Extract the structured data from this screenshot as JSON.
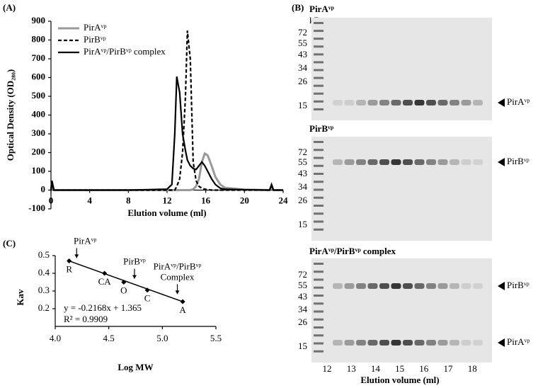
{
  "chart_data": [
    {
      "type": "line",
      "panel": "(A)",
      "x_label": "Elution volume (ml)",
      "y_label": "Optical Density (OD₂₈₀)",
      "x": [
        0,
        0.1,
        0.3,
        4,
        8,
        12,
        12.5,
        12.8,
        13,
        13.3,
        13.6,
        13.9,
        14.1,
        14.4,
        14.7,
        15,
        15.3,
        15.6,
        15.9,
        16.2,
        16.6,
        17,
        17.5,
        18,
        20,
        22.6,
        22.8,
        23,
        24
      ],
      "series": [
        {
          "name": "PirAᵛᵖ",
          "color": "#999999",
          "dash": false,
          "values": [
            0,
            40,
            0,
            0,
            0,
            0,
            0,
            0,
            0,
            0,
            0,
            0,
            0,
            0,
            5,
            20,
            60,
            150,
            195,
            185,
            130,
            70,
            30,
            12,
            3,
            0,
            25,
            0,
            0
          ]
        },
        {
          "name": "PirBᵛᵖ",
          "color": "#000000",
          "dash": true,
          "values": [
            0,
            40,
            0,
            0,
            0,
            0,
            0,
            0,
            20,
            60,
            200,
            500,
            850,
            700,
            150,
            50,
            20,
            10,
            5,
            3,
            0,
            0,
            0,
            0,
            0,
            0,
            25,
            0,
            0
          ]
        },
        {
          "name": "PirAᵛᵖ/PirBᵛᵖ complex",
          "color": "#000000",
          "dash": false,
          "values": [
            0,
            50,
            0,
            0,
            0,
            5,
            30,
            300,
            605,
            520,
            300,
            210,
            160,
            130,
            115,
            110,
            130,
            150,
            130,
            100,
            60,
            30,
            10,
            5,
            2,
            0,
            30,
            0,
            0
          ]
        }
      ],
      "xlim": [
        0,
        24
      ],
      "xticks": [
        0,
        4,
        8,
        12,
        16,
        20,
        24
      ],
      "ylim": [
        -100,
        900
      ],
      "yticks": [
        -100,
        0,
        100,
        200,
        300,
        400,
        500,
        600,
        700,
        800,
        900
      ],
      "legend": "top-left"
    },
    {
      "type": "scatter",
      "panel": "(C)",
      "x_label": "Log MW",
      "y_label": "Kav",
      "x": [
        4.13,
        4.46,
        4.64,
        4.86,
        5.19
      ],
      "values": [
        0.47,
        0.4,
        0.35,
        0.305,
        0.24
      ],
      "point_labels": [
        "R",
        "CA",
        "O",
        "C",
        "A"
      ],
      "fit": {
        "slope": -0.2168,
        "intercept": 1.365
      },
      "equation": "y = -0.2168x + 1.365",
      "r_squared": "R² = 0.9909",
      "markers": [
        {
          "x": 4.2,
          "lines": [
            "PirAᵛᵖ"
          ]
        },
        {
          "x": 4.74,
          "lines": [
            "PirBᵛᵖ"
          ]
        },
        {
          "x": 5.14,
          "lines": [
            "PirAᵛᵖ/PirBᵛᵖ",
            "Complex"
          ]
        }
      ],
      "xlim": [
        4,
        5.5
      ],
      "xticks": [
        {
          "value": 4,
          "label": "4.0"
        },
        {
          "value": 4.5,
          "label": "4.5"
        },
        {
          "value": 5,
          "label": "5.0"
        },
        {
          "value": 5.5,
          "label": "5.5"
        }
      ],
      "ylim": [
        0.1,
        0.5
      ],
      "yticks": [
        0.2,
        0.3,
        0.4,
        0.5
      ]
    }
  ],
  "gel": {
    "panel": "(B)",
    "unit": "kDa",
    "panels": [
      {
        "title": "PirAᵛᵖ",
        "markers": [
          72,
          55,
          43,
          34,
          26,
          15
        ],
        "bands": [
          "PirAᵛᵖ"
        ]
      },
      {
        "title": "PirBᵛᵖ",
        "markers": [
          72,
          55,
          43,
          34,
          26,
          15
        ],
        "bands": [
          "PirBᵛᵖ"
        ]
      },
      {
        "title": "PirAᵛᵖ/PirBᵛᵖ complex",
        "markers": [
          72,
          55,
          43,
          34,
          26,
          15
        ],
        "bands": [
          "PirBᵛᵖ",
          "PirAᵛᵖ"
        ]
      }
    ],
    "lanes": [
      "12",
      "13",
      "14",
      "15",
      "16",
      "17",
      "18"
    ],
    "x_label": "Elution volume (ml)"
  }
}
